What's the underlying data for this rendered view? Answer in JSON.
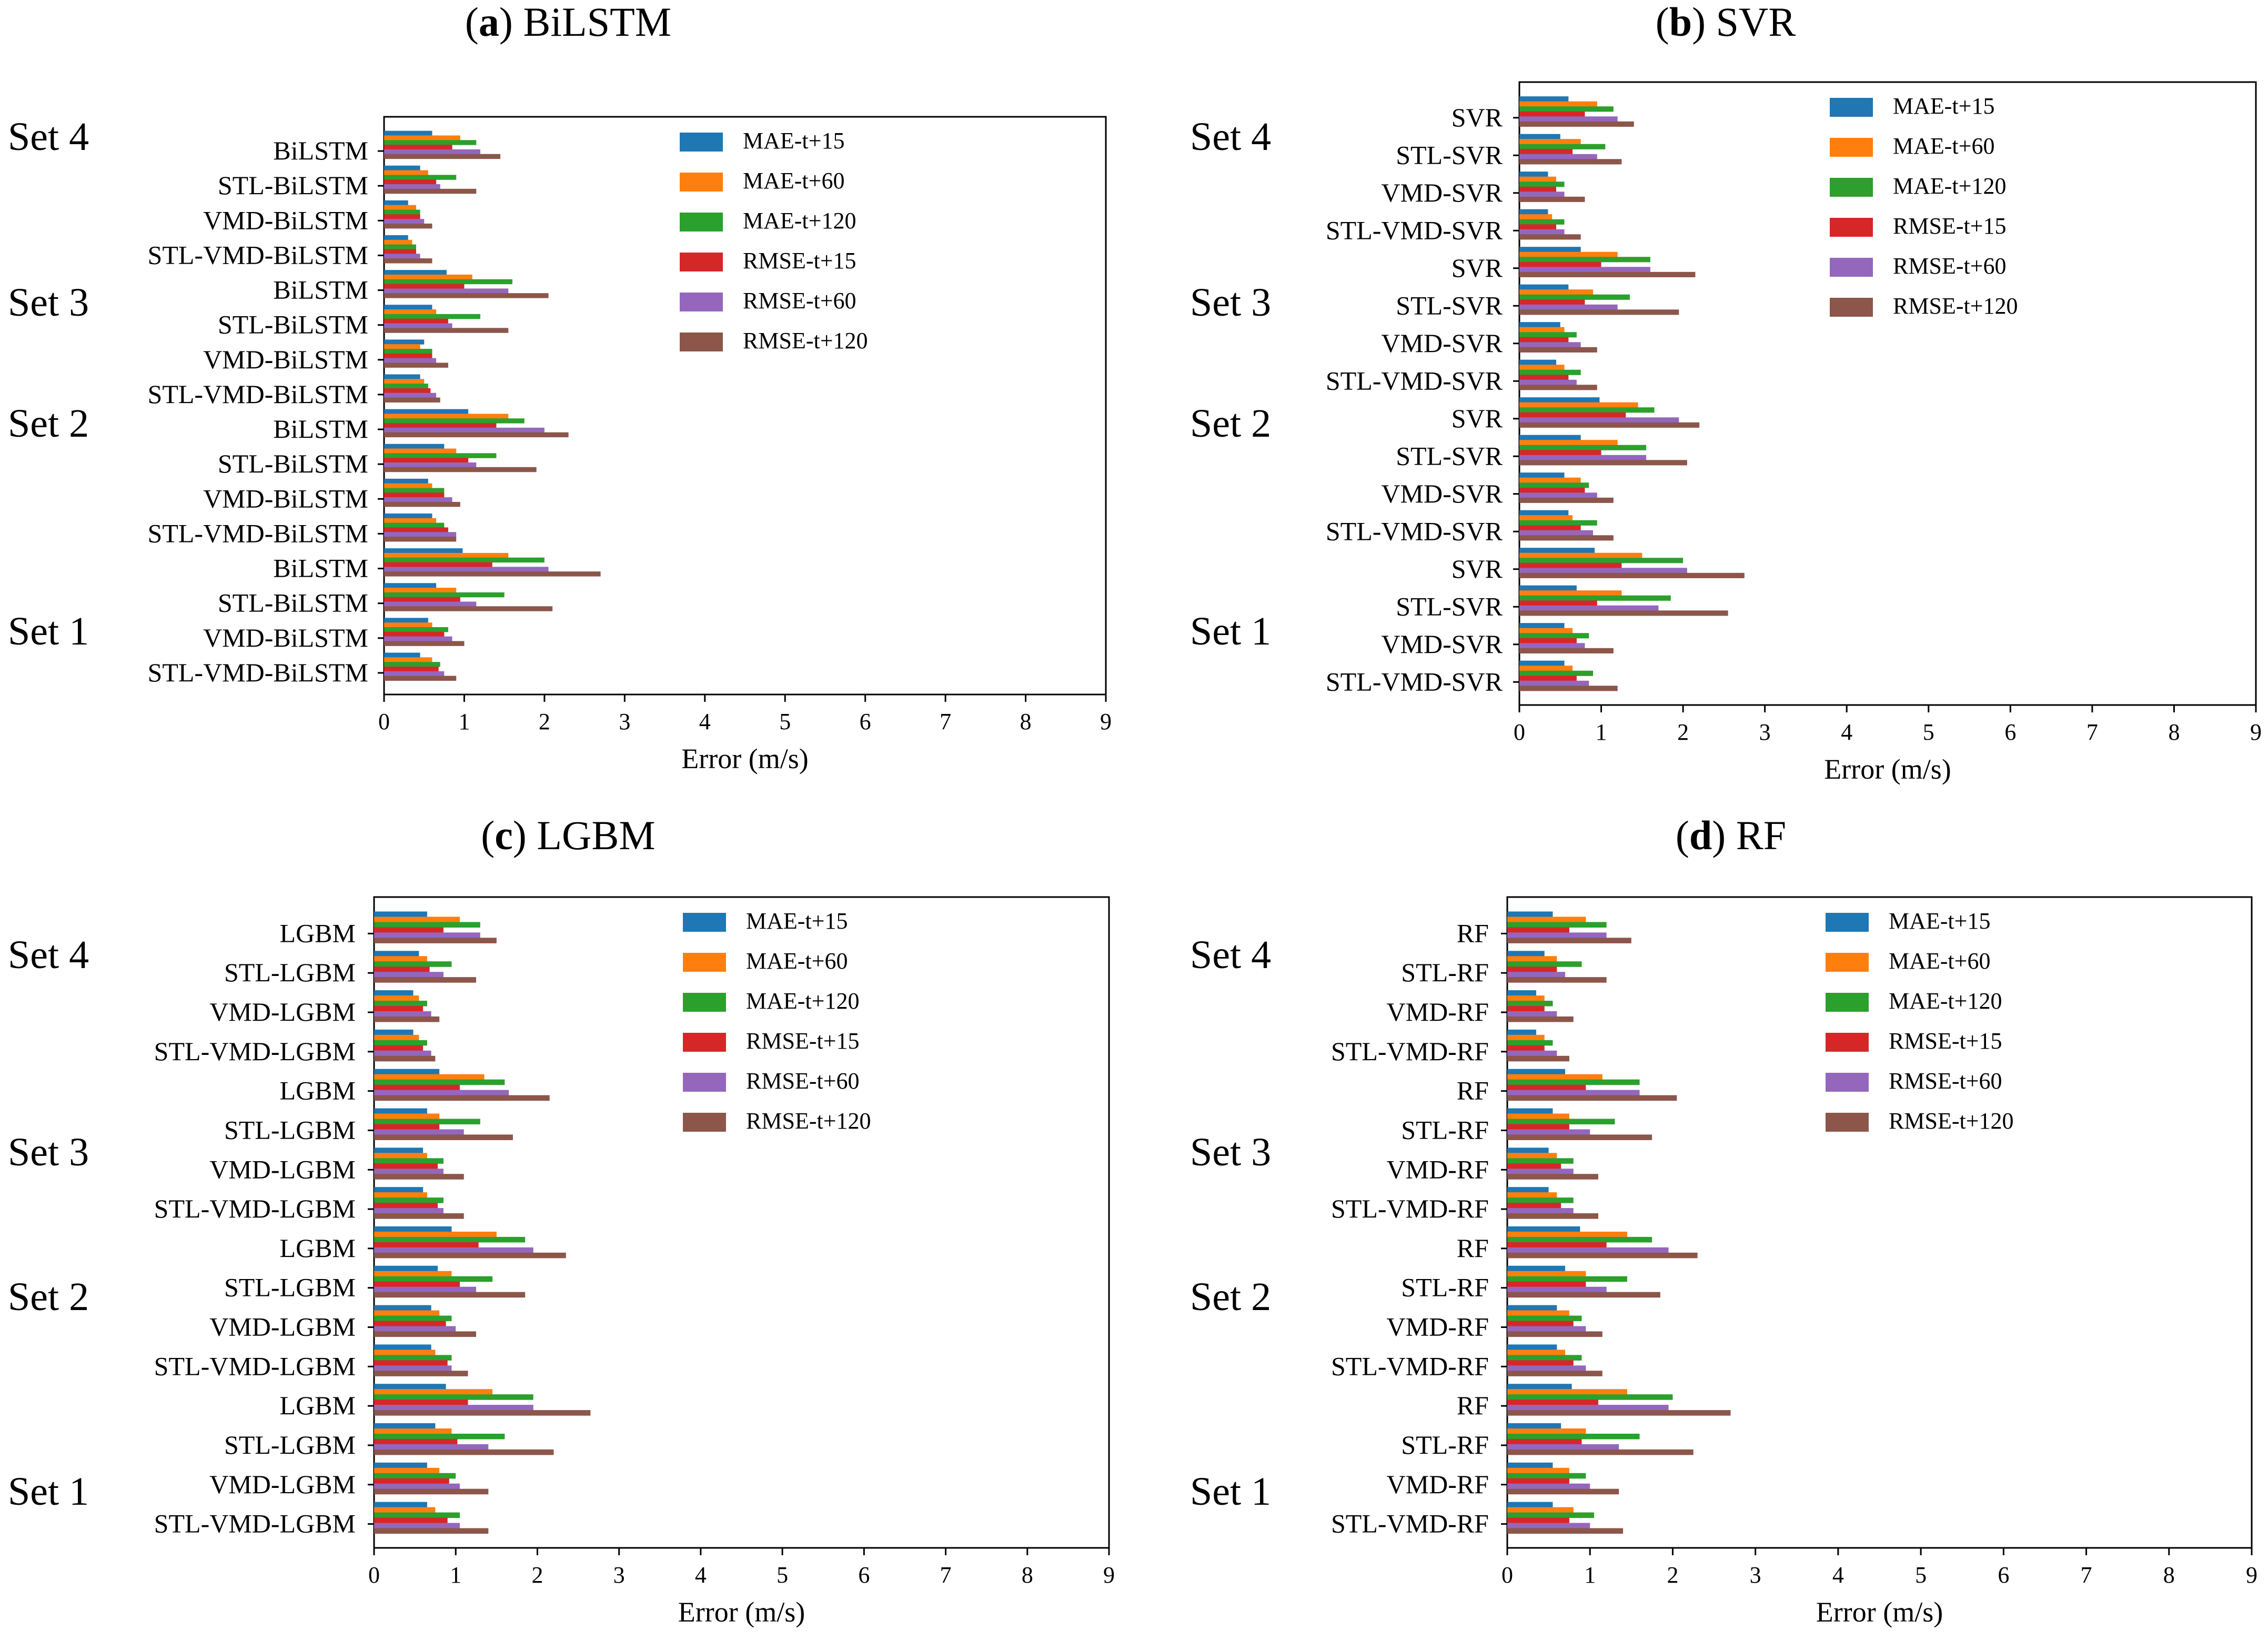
{
  "figure": {
    "xlabel": "Error (m/s)"
  },
  "colors": {
    "MAE-t+15": "#1f77b4",
    "MAE-t+60": "#ff7f0e",
    "MAE-t+120": "#2ca02c",
    "RMSE-t+15": "#d62728",
    "RMSE-t+60": "#9467bd",
    "RMSE-t+120": "#8c564b"
  },
  "chart_data": [
    {
      "type": "bar",
      "letter": "a",
      "title": "BiLSTM",
      "xlabel": "Error (m/s)",
      "xlim": [
        0,
        9
      ],
      "xticks": [
        "0",
        "1",
        "2",
        "3",
        "4",
        "5",
        "6",
        "7",
        "8",
        "9"
      ],
      "legend": [
        "MAE-t+15",
        "MAE-t+60",
        "MAE-t+120",
        "RMSE-t+15",
        "RMSE-t+60",
        "RMSE-t+120"
      ],
      "legend_position": "top-right",
      "set_labels": [
        "Set 4",
        "Set 3",
        "Set 2",
        "Set 1"
      ],
      "categories": [
        "BiLSTM",
        "STL-BiLSTM",
        "VMD-BiLSTM",
        "STL-VMD-BiLSTM",
        "BiLSTM",
        "STL-BiLSTM",
        "VMD-BiLSTM",
        "STL-VMD-BiLSTM",
        "BiLSTM",
        "STL-BiLSTM",
        "VMD-BiLSTM",
        "STL-VMD-BiLSTM",
        "BiLSTM",
        "STL-BiLSTM",
        "VMD-BiLSTM",
        "STL-VMD-BiLSTM"
      ],
      "series": [
        {
          "name": "MAE-t+15",
          "values": [
            0.6,
            0.45,
            0.3,
            0.3,
            0.78,
            0.6,
            0.5,
            0.45,
            1.05,
            0.75,
            0.55,
            0.6,
            0.98,
            0.65,
            0.55,
            0.45
          ]
        },
        {
          "name": "MAE-t+60",
          "values": [
            0.95,
            0.55,
            0.4,
            0.35,
            1.1,
            0.65,
            0.45,
            0.5,
            1.55,
            0.9,
            0.6,
            0.65,
            1.55,
            0.9,
            0.6,
            0.6
          ]
        },
        {
          "name": "MAE-t+120",
          "values": [
            1.15,
            0.9,
            0.45,
            0.4,
            1.6,
            1.2,
            0.6,
            0.55,
            1.75,
            1.4,
            0.75,
            0.75,
            2.0,
            1.5,
            0.8,
            0.7
          ]
        },
        {
          "name": "RMSE-t+15",
          "values": [
            0.85,
            0.65,
            0.45,
            0.4,
            1.0,
            0.8,
            0.6,
            0.58,
            1.4,
            1.05,
            0.75,
            0.8,
            1.35,
            0.95,
            0.75,
            0.68
          ]
        },
        {
          "name": "RMSE-t+60",
          "values": [
            1.2,
            0.7,
            0.5,
            0.45,
            1.55,
            0.85,
            0.65,
            0.65,
            2.0,
            1.15,
            0.85,
            0.9,
            2.05,
            1.15,
            0.85,
            0.75
          ]
        },
        {
          "name": "RMSE-t+120",
          "values": [
            1.45,
            1.15,
            0.6,
            0.6,
            2.05,
            1.55,
            0.8,
            0.7,
            2.3,
            1.9,
            0.95,
            0.9,
            2.7,
            2.1,
            1.0,
            0.9
          ]
        }
      ]
    },
    {
      "type": "bar",
      "letter": "b",
      "title": "SVR",
      "xlabel": "Error (m/s)",
      "xlim": [
        0,
        9
      ],
      "xticks": [
        "0",
        "1",
        "2",
        "3",
        "4",
        "5",
        "6",
        "7",
        "8",
        "9"
      ],
      "legend": [
        "MAE-t+15",
        "MAE-t+60",
        "MAE-t+120",
        "RMSE-t+15",
        "RMSE-t+60",
        "RMSE-t+120"
      ],
      "legend_position": "top-right",
      "set_labels": [
        "Set 4",
        "Set 3",
        "Set 2",
        "Set 1"
      ],
      "categories": [
        "SVR",
        "STL-SVR",
        "VMD-SVR",
        "STL-VMD-SVR",
        "SVR",
        "STL-SVR",
        "VMD-SVR",
        "STL-VMD-SVR",
        "SVR",
        "STL-SVR",
        "VMD-SVR",
        "STL-VMD-SVR",
        "SVR",
        "STL-SVR",
        "VMD-SVR",
        "STL-VMD-SVR"
      ],
      "series": [
        {
          "name": "MAE-t+15",
          "values": [
            0.6,
            0.5,
            0.35,
            0.35,
            0.75,
            0.6,
            0.5,
            0.45,
            0.98,
            0.75,
            0.55,
            0.6,
            0.92,
            0.7,
            0.55,
            0.55
          ]
        },
        {
          "name": "MAE-t+60",
          "values": [
            0.95,
            0.75,
            0.45,
            0.4,
            1.2,
            0.9,
            0.55,
            0.55,
            1.45,
            1.2,
            0.75,
            0.65,
            1.5,
            1.25,
            0.65,
            0.65
          ]
        },
        {
          "name": "MAE-t+120",
          "values": [
            1.15,
            1.05,
            0.55,
            0.55,
            1.6,
            1.35,
            0.7,
            0.75,
            1.65,
            1.55,
            0.85,
            0.95,
            2.0,
            1.85,
            0.85,
            0.9
          ]
        },
        {
          "name": "RMSE-t+15",
          "values": [
            0.8,
            0.65,
            0.45,
            0.45,
            1.0,
            0.8,
            0.6,
            0.6,
            1.3,
            1.0,
            0.8,
            0.75,
            1.25,
            0.95,
            0.7,
            0.7
          ]
        },
        {
          "name": "RMSE-t+60",
          "values": [
            1.2,
            0.95,
            0.55,
            0.55,
            1.6,
            1.2,
            0.75,
            0.7,
            1.95,
            1.55,
            0.95,
            0.9,
            2.05,
            1.7,
            0.8,
            0.85
          ]
        },
        {
          "name": "RMSE-t+120",
          "values": [
            1.4,
            1.25,
            0.8,
            0.75,
            2.15,
            1.95,
            0.95,
            0.95,
            2.2,
            2.05,
            1.15,
            1.15,
            2.75,
            2.55,
            1.15,
            1.2
          ]
        }
      ]
    },
    {
      "type": "bar",
      "letter": "c",
      "title": "LGBM",
      "xlabel": "Error (m/s)",
      "xlim": [
        0,
        9
      ],
      "xticks": [
        "0",
        "1",
        "2",
        "3",
        "4",
        "5",
        "6",
        "7",
        "8",
        "9"
      ],
      "legend": [
        "MAE-t+15",
        "MAE-t+60",
        "MAE-t+120",
        "RMSE-t+15",
        "RMSE-t+60",
        "RMSE-t+120"
      ],
      "legend_position": "top-right",
      "set_labels": [
        "Set 4",
        "Set 3",
        "Set 2",
        "Set 1"
      ],
      "categories": [
        "LGBM",
        "STL-LGBM",
        "VMD-LGBM",
        "STL-VMD-LGBM",
        "LGBM",
        "STL-LGBM",
        "VMD-LGBM",
        "STL-VMD-LGBM",
        "LGBM",
        "STL-LGBM",
        "VMD-LGBM",
        "STL-VMD-LGBM",
        "LGBM",
        "STL-LGBM",
        "VMD-LGBM",
        "STL-VMD-LGBM"
      ],
      "series": [
        {
          "name": "MAE-t+15",
          "values": [
            0.65,
            0.55,
            0.48,
            0.48,
            0.8,
            0.65,
            0.6,
            0.6,
            0.95,
            0.78,
            0.7,
            0.7,
            0.88,
            0.75,
            0.65,
            0.65
          ]
        },
        {
          "name": "MAE-t+60",
          "values": [
            1.05,
            0.65,
            0.55,
            0.55,
            1.35,
            0.8,
            0.65,
            0.65,
            1.5,
            0.95,
            0.8,
            0.75,
            1.45,
            0.95,
            0.8,
            0.75
          ]
        },
        {
          "name": "MAE-t+120",
          "values": [
            1.3,
            0.95,
            0.65,
            0.65,
            1.6,
            1.3,
            0.85,
            0.85,
            1.85,
            1.45,
            0.95,
            0.95,
            1.95,
            1.6,
            1.0,
            1.05
          ]
        },
        {
          "name": "RMSE-t+15",
          "values": [
            0.85,
            0.68,
            0.6,
            0.6,
            1.05,
            0.8,
            0.78,
            0.78,
            1.28,
            1.05,
            0.88,
            0.9,
            1.15,
            1.02,
            0.92,
            0.9
          ]
        },
        {
          "name": "RMSE-t+60",
          "values": [
            1.3,
            0.85,
            0.7,
            0.7,
            1.65,
            1.1,
            0.85,
            0.85,
            1.95,
            1.25,
            1.0,
            0.95,
            1.95,
            1.4,
            1.05,
            1.05
          ]
        },
        {
          "name": "RMSE-t+120",
          "values": [
            1.5,
            1.25,
            0.8,
            0.75,
            2.15,
            1.7,
            1.1,
            1.1,
            2.35,
            1.85,
            1.25,
            1.15,
            2.65,
            2.2,
            1.4,
            1.4
          ]
        }
      ]
    },
    {
      "type": "bar",
      "letter": "d",
      "title": "RF",
      "xlabel": "Error (m/s)",
      "xlim": [
        0,
        9
      ],
      "xticks": [
        "0",
        "1",
        "2",
        "3",
        "4",
        "5",
        "6",
        "7",
        "8",
        "9"
      ],
      "legend": [
        "MAE-t+15",
        "MAE-t+60",
        "MAE-t+120",
        "RMSE-t+15",
        "RMSE-t+60",
        "RMSE-t+120"
      ],
      "legend_position": "top-right",
      "set_labels": [
        "Set 4",
        "Set 3",
        "Set 2",
        "Set 1"
      ],
      "categories": [
        "RF",
        "STL-RF",
        "VMD-RF",
        "STL-VMD-RF",
        "RF",
        "STL-RF",
        "VMD-RF",
        "STL-VMD-RF",
        "RF",
        "STL-RF",
        "VMD-RF",
        "STL-VMD-RF",
        "RF",
        "STL-RF",
        "VMD-RF",
        "STL-VMD-RF"
      ],
      "series": [
        {
          "name": "MAE-t+15",
          "values": [
            0.55,
            0.45,
            0.35,
            0.35,
            0.7,
            0.55,
            0.5,
            0.5,
            0.88,
            0.7,
            0.6,
            0.6,
            0.78,
            0.65,
            0.55,
            0.55
          ]
        },
        {
          "name": "MAE-t+60",
          "values": [
            0.95,
            0.6,
            0.45,
            0.45,
            1.15,
            0.75,
            0.6,
            0.6,
            1.45,
            0.95,
            0.75,
            0.7,
            1.45,
            0.95,
            0.75,
            0.8
          ]
        },
        {
          "name": "MAE-t+120",
          "values": [
            1.2,
            0.9,
            0.55,
            0.55,
            1.6,
            1.3,
            0.8,
            0.8,
            1.75,
            1.45,
            0.9,
            0.9,
            2.0,
            1.6,
            0.95,
            1.05
          ]
        },
        {
          "name": "RMSE-t+15",
          "values": [
            0.75,
            0.6,
            0.45,
            0.45,
            0.95,
            0.75,
            0.65,
            0.65,
            1.2,
            0.95,
            0.8,
            0.8,
            1.1,
            0.9,
            0.75,
            0.75
          ]
        },
        {
          "name": "RMSE-t+60",
          "values": [
            1.2,
            0.7,
            0.6,
            0.6,
            1.6,
            1.0,
            0.8,
            0.8,
            1.95,
            1.2,
            0.95,
            0.95,
            1.95,
            1.35,
            1.0,
            1.0
          ]
        },
        {
          "name": "RMSE-t+120",
          "values": [
            1.5,
            1.2,
            0.8,
            0.75,
            2.05,
            1.75,
            1.1,
            1.1,
            2.3,
            1.85,
            1.15,
            1.15,
            2.7,
            2.25,
            1.35,
            1.4
          ]
        }
      ]
    }
  ]
}
